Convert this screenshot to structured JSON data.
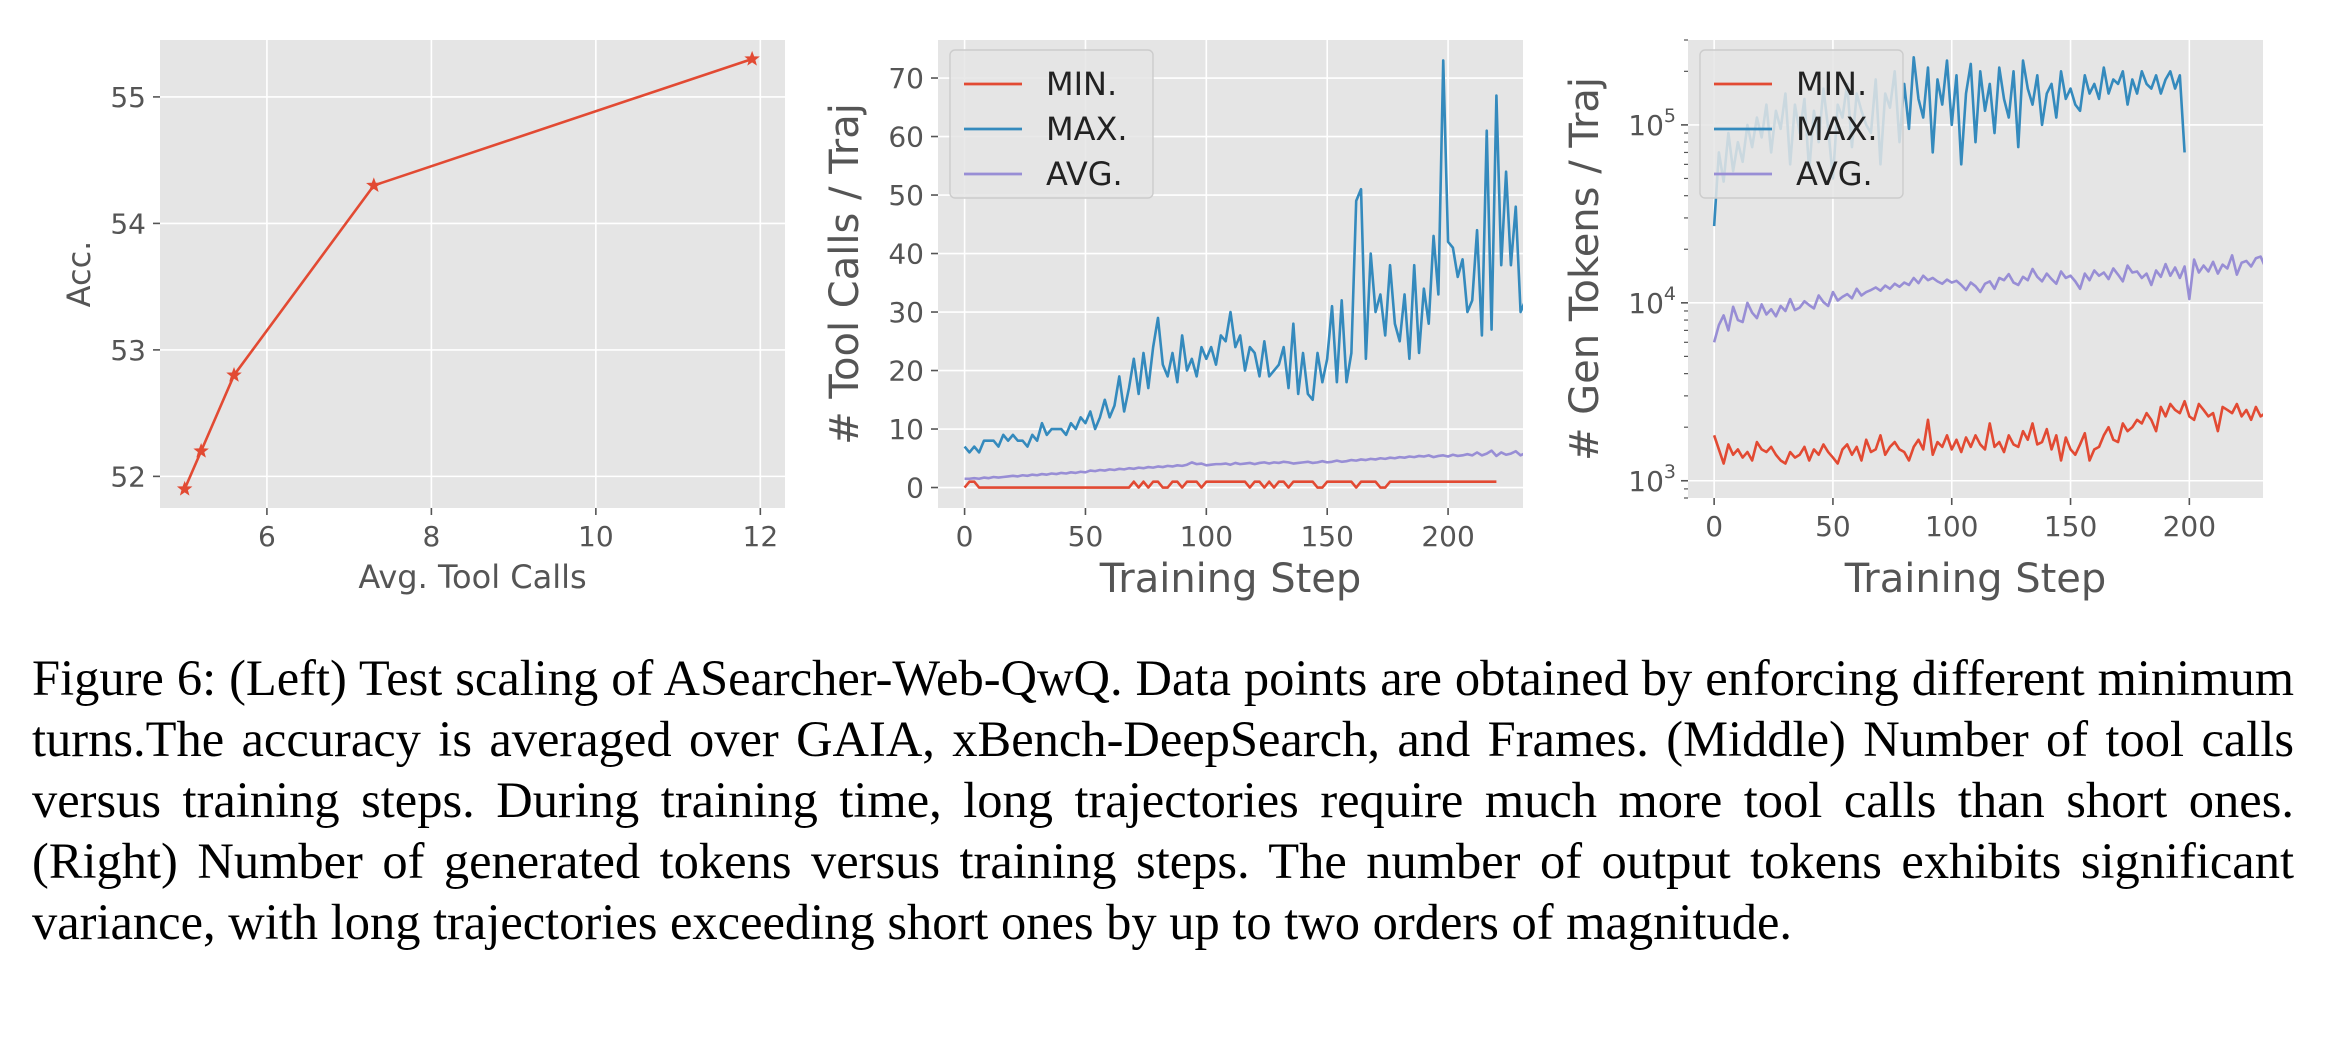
{
  "caption": "Figure 6: (Left) Test scaling of ASearcher-Web-QwQ. Data points are obtained by enforcing different minimum turns.The accuracy is averaged over GAIA, xBench-DeepSearch, and Frames. (Middle) Number of tool calls versus training steps. During training time, long trajectories require much more tool calls than short ones. (Right) Number of generated tokens versus training steps. The number of output tokens exhibits significant variance, with long trajectories exceeding short ones by up to two orders of magnitude.",
  "colors": {
    "min": "#e24a33",
    "max": "#348abd",
    "avg": "#988ed5",
    "panel_bg": "#e5e5e5",
    "grid": "#ffffff",
    "text": "#555555"
  },
  "chart_data": [
    {
      "type": "line",
      "xlabel": "Avg. Tool Calls",
      "ylabel": "Acc.",
      "xlim": [
        4.7,
        12.3
      ],
      "ylim": [
        51.75,
        55.45
      ],
      "xticks": [
        6,
        8,
        10,
        12
      ],
      "yticks": [
        52,
        53,
        54,
        55
      ],
      "grid": true,
      "series": [
        {
          "color": "#e24a33",
          "marker": "star",
          "x": [
            5.0,
            5.2,
            5.6,
            7.3,
            11.9
          ],
          "y": [
            51.9,
            52.2,
            52.8,
            54.3,
            55.3
          ]
        }
      ]
    },
    {
      "type": "line",
      "xlabel": "Training Step",
      "ylabel": "# Tool Calls / Traj",
      "xlim": [
        -11,
        231
      ],
      "ylim": [
        -3.5,
        76.5
      ],
      "xticks": [
        0,
        50,
        100,
        150,
        200
      ],
      "yticks": [
        0,
        10,
        20,
        30,
        40,
        50,
        60,
        70
      ],
      "grid": true,
      "legend_position": "top-left",
      "x_start": 0,
      "x_step": 2,
      "series": [
        {
          "name": "MIN.",
          "color": "#e24a33",
          "values": [
            0,
            1,
            1,
            0,
            0,
            0,
            0,
            0,
            0,
            0,
            0,
            0,
            0,
            0,
            0,
            0,
            0,
            0,
            0,
            0,
            0,
            0,
            0,
            0,
            0,
            0,
            0,
            0,
            0,
            0,
            0,
            0,
            0,
            0,
            0,
            1,
            0,
            1,
            0,
            1,
            1,
            0,
            0,
            1,
            1,
            0,
            1,
            1,
            1,
            0,
            1,
            1,
            1,
            1,
            1,
            1,
            1,
            1,
            1,
            0,
            1,
            1,
            0,
            1,
            0,
            1,
            1,
            0,
            1,
            1,
            1,
            1,
            1,
            0,
            0,
            1,
            1,
            1,
            1,
            1,
            1,
            0,
            1,
            1,
            1,
            1,
            0,
            0,
            1,
            1,
            1,
            1,
            1,
            1,
            1,
            1,
            1,
            1,
            1,
            1,
            1,
            1,
            1,
            1,
            1,
            1,
            1,
            1,
            1,
            1,
            1
          ]
        },
        {
          "name": "MAX.",
          "color": "#348abd",
          "values": [
            7,
            6,
            7,
            6,
            8,
            8,
            8,
            7,
            9,
            8,
            9,
            8,
            8,
            7,
            9,
            8,
            11,
            9,
            10,
            10,
            10,
            9,
            11,
            10,
            12,
            11,
            13,
            10,
            12,
            15,
            12,
            14,
            19,
            13,
            17,
            22,
            16,
            23,
            17,
            24,
            29,
            21,
            19,
            23,
            18,
            26,
            20,
            22,
            19,
            24,
            22,
            24,
            21,
            26,
            25,
            30,
            24,
            26,
            20,
            24,
            23,
            19,
            25,
            19,
            20,
            21,
            24,
            17,
            28,
            16,
            23,
            16,
            15,
            23,
            18,
            22,
            31,
            18,
            32,
            18,
            23,
            49,
            51,
            22,
            40,
            30,
            33,
            26,
            38,
            28,
            25,
            33,
            22,
            38,
            23,
            34,
            28,
            43,
            33,
            73,
            42,
            41,
            36,
            39,
            30,
            32,
            44,
            26,
            61,
            27,
            67,
            38,
            54,
            38,
            48,
            30,
            32
          ]
        },
        {
          "name": "AVG.",
          "color": "#988ed5",
          "values": [
            1.5,
            1.5,
            1.6,
            1.5,
            1.7,
            1.6,
            1.8,
            1.7,
            1.8,
            1.9,
            2.0,
            1.9,
            2.1,
            2.0,
            2.2,
            2.1,
            2.3,
            2.2,
            2.4,
            2.3,
            2.5,
            2.4,
            2.6,
            2.5,
            2.7,
            2.6,
            2.9,
            2.8,
            3.0,
            2.9,
            3.1,
            3.0,
            3.2,
            3.1,
            3.3,
            3.2,
            3.4,
            3.3,
            3.5,
            3.4,
            3.6,
            3.5,
            3.7,
            3.6,
            3.8,
            3.7,
            3.9,
            4.3,
            4.0,
            4.1,
            3.8,
            3.9,
            4.0,
            4.0,
            4.1,
            3.9,
            4.2,
            4.0,
            4.1,
            4.2,
            4.0,
            4.2,
            4.3,
            4.1,
            4.3,
            4.2,
            4.4,
            4.3,
            4.1,
            4.2,
            4.3,
            4.4,
            4.2,
            4.3,
            4.5,
            4.3,
            4.4,
            4.6,
            4.4,
            4.5,
            4.7,
            4.6,
            4.8,
            4.7,
            4.9,
            4.8,
            5.0,
            4.9,
            5.1,
            5.0,
            5.2,
            5.1,
            5.3,
            5.2,
            5.4,
            5.3,
            5.5,
            5.2,
            5.4,
            5.5,
            5.3,
            5.6,
            5.4,
            5.5,
            5.7,
            5.5,
            6.0,
            5.5,
            5.8,
            6.3,
            5.4,
            6.0,
            5.6,
            5.8,
            6.2,
            5.5,
            5.9,
            5.7,
            5.5,
            5.6,
            5.8,
            5.6,
            5.5,
            5.7,
            5.9,
            5.6,
            5.4,
            5.8,
            5.5,
            5.7,
            5.5
          ]
        }
      ]
    },
    {
      "type": "line",
      "scale": "log",
      "xlabel": "Training Step",
      "ylabel": "# Gen Tokens / Traj",
      "xlim": [
        -11,
        231
      ],
      "ylim": [
        800,
        300000
      ],
      "xticks": [
        0,
        50,
        100,
        150,
        200
      ],
      "yticks": [
        1000,
        10000,
        100000
      ],
      "ytick_labels": [
        {
          "base": "10",
          "exp": "3"
        },
        {
          "base": "10",
          "exp": "4"
        },
        {
          "base": "10",
          "exp": "5"
        }
      ],
      "grid": true,
      "legend_position": "top-left",
      "x_start": 0,
      "x_step": 2,
      "series": [
        {
          "name": "MIN.",
          "color": "#e24a33",
          "values": [
            1800,
            1500,
            1250,
            1600,
            1400,
            1500,
            1350,
            1450,
            1300,
            1650,
            1500,
            1450,
            1550,
            1400,
            1300,
            1250,
            1450,
            1350,
            1400,
            1550,
            1300,
            1500,
            1400,
            1600,
            1450,
            1350,
            1250,
            1500,
            1600,
            1400,
            1550,
            1300,
            1700,
            1450,
            1500,
            1800,
            1400,
            1550,
            1650,
            1500,
            1450,
            1300,
            1550,
            1700,
            1500,
            2200,
            1400,
            1650,
            1550,
            1800,
            1500,
            1700,
            1450,
            1750,
            1550,
            1800,
            1600,
            1500,
            2100,
            1550,
            1650,
            1450,
            1800,
            1600,
            1550,
            1900,
            1700,
            2100,
            1600,
            1650,
            1950,
            1500,
            1800,
            1300,
            1750,
            1500,
            1400,
            1600,
            1850,
            1300,
            1500,
            1550,
            1800,
            2000,
            1700,
            1650,
            2100,
            1900,
            2000,
            2200,
            2100,
            2400,
            2200,
            1900,
            2600,
            2300,
            2700,
            2500,
            2400,
            2800,
            2300,
            2200,
            2700,
            2500,
            2300,
            2400,
            1900,
            2600,
            2500,
            2400,
            2700,
            2300,
            2500,
            2200,
            2600,
            2300,
            2400,
            2200
          ]
        },
        {
          "name": "MAX.",
          "color": "#348abd",
          "values": [
            27000,
            70000,
            48000,
            90000,
            55000,
            80000,
            62000,
            100000,
            75000,
            110000,
            85000,
            130000,
            70000,
            120000,
            95000,
            150000,
            60000,
            130000,
            90000,
            140000,
            55000,
            120000,
            80000,
            160000,
            95000,
            50000,
            130000,
            110000,
            170000,
            75000,
            150000,
            120000,
            100000,
            90000,
            180000,
            60000,
            150000,
            125000,
            200000,
            80000,
            170000,
            95000,
            240000,
            140000,
            110000,
            210000,
            70000,
            180000,
            130000,
            230000,
            100000,
            190000,
            60000,
            150000,
            220000,
            80000,
            200000,
            120000,
            170000,
            90000,
            210000,
            140000,
            110000,
            200000,
            75000,
            230000,
            160000,
            130000,
            190000,
            100000,
            150000,
            170000,
            110000,
            200000,
            140000,
            160000,
            130000,
            120000,
            190000,
            150000,
            170000,
            140000,
            210000,
            150000,
            180000,
            170000,
            200000,
            130000,
            180000,
            150000,
            200000,
            170000,
            160000,
            190000,
            150000,
            180000,
            200000,
            160000,
            190000,
            70000
          ]
        },
        {
          "name": "AVG.",
          "color": "#988ed5",
          "values": [
            6000,
            7500,
            8500,
            7000,
            9500,
            8000,
            7800,
            10000,
            8800,
            8200,
            9800,
            8600,
            9200,
            8400,
            9600,
            9000,
            10500,
            9100,
            9400,
            10200,
            9700,
            9300,
            11000,
            10100,
            9600,
            11500,
            10300,
            10800,
            11200,
            10600,
            12000,
            11000,
            11500,
            11800,
            12200,
            11700,
            12500,
            12000,
            12800,
            12300,
            13000,
            12600,
            13800,
            12900,
            14200,
            13400,
            13800,
            13200,
            12800,
            13500,
            13000,
            13300,
            12600,
            11800,
            13000,
            12400,
            11500,
            12800,
            13200,
            12000,
            13800,
            13400,
            14500,
            13000,
            12600,
            14000,
            13400,
            15500,
            14000,
            13200,
            14600,
            13600,
            12800,
            15000,
            13800,
            14200,
            13200,
            12000,
            14600,
            13400,
            15200,
            14200,
            14800,
            13600,
            15600,
            14400,
            13200,
            16200,
            14800,
            15000,
            13800,
            14600,
            12600,
            15200,
            14000,
            16500,
            14200,
            15800,
            13800,
            16000,
            10500,
            17500,
            14800,
            16200,
            15000,
            17000,
            14600,
            16400,
            15600,
            18500,
            14400,
            16800,
            17200,
            16000,
            17800,
            18200,
            15800,
            23000,
            16200,
            18600,
            17200,
            16400,
            18800,
            16000,
            20000,
            17400,
            18400,
            16600,
            19000,
            17200,
            16600
          ]
        }
      ]
    }
  ]
}
